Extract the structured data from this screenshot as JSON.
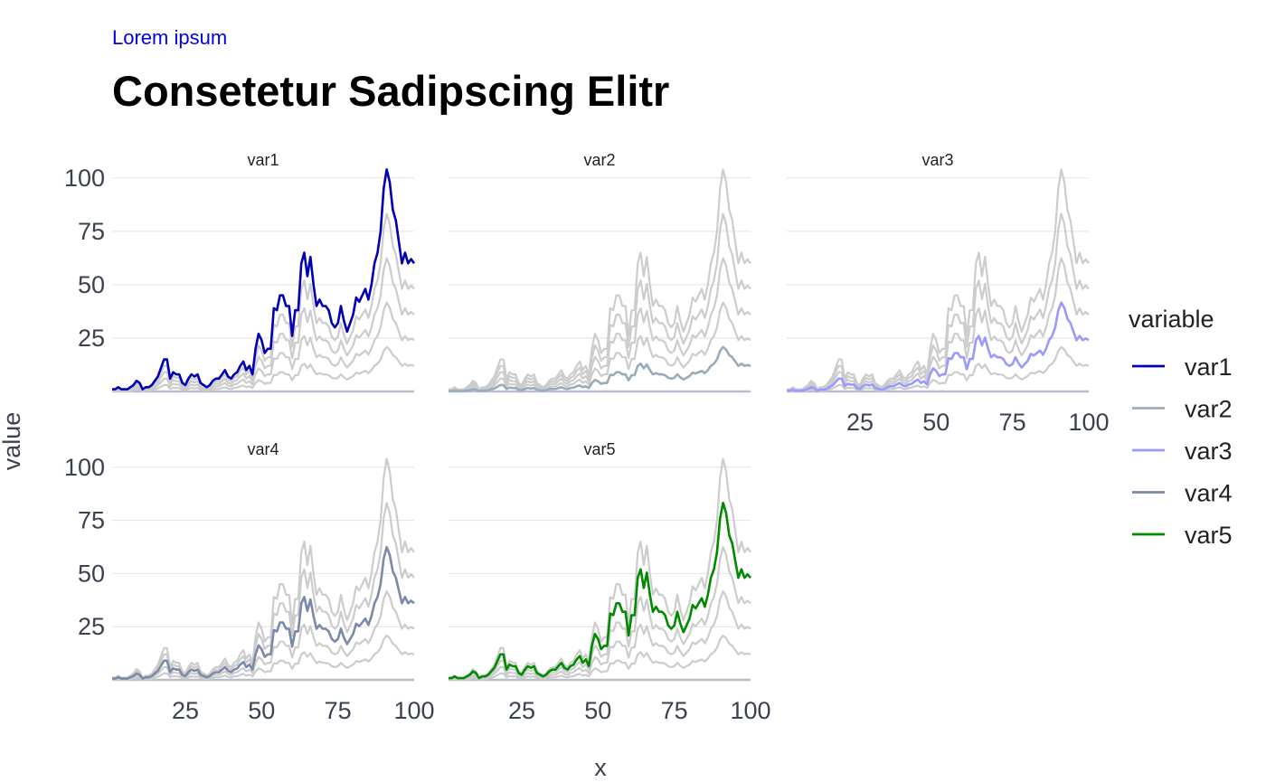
{
  "header": {
    "subtitle": "Lorem ipsum",
    "title": "Consetetur Sadipscing Elitr"
  },
  "colors": {
    "background_line": "#cccccc",
    "grid": "#e2e2e2",
    "axis": "#b8bfcc",
    "subtitle": "#0000ee"
  },
  "chart_data": {
    "type": "line",
    "layout": "faceted small multiples, 3 columns, other series in grey behind each panel",
    "xlabel": "x",
    "ylabel": "value",
    "xlim": [
      1,
      100
    ],
    "ylim": [
      0,
      105
    ],
    "x_ticks": [
      25,
      50,
      75,
      100
    ],
    "y_ticks": [
      25,
      50,
      75,
      100
    ],
    "grid": "horizontal major",
    "legend": {
      "title": "variable",
      "position": "right"
    },
    "facets": [
      "var1",
      "var2",
      "var3",
      "var4",
      "var5"
    ],
    "series": [
      {
        "name": "var1",
        "color": "#0000b3",
        "scale": 1.0
      },
      {
        "name": "var2",
        "color": "#9aabb9",
        "scale": 0.2
      },
      {
        "name": "var3",
        "color": "#9999ff",
        "scale": 0.4
      },
      {
        "name": "var4",
        "color": "#7a8aa8",
        "scale": 0.6
      },
      {
        "name": "var5",
        "color": "#008a00",
        "scale": 0.8
      }
    ],
    "x": [
      1,
      2,
      3,
      4,
      5,
      6,
      7,
      8,
      9,
      10,
      11,
      12,
      13,
      14,
      15,
      16,
      17,
      18,
      19,
      20,
      21,
      22,
      23,
      24,
      25,
      26,
      27,
      28,
      29,
      30,
      31,
      32,
      33,
      34,
      35,
      36,
      37,
      38,
      39,
      40,
      41,
      42,
      43,
      44,
      45,
      46,
      47,
      48,
      49,
      50,
      51,
      52,
      53,
      54,
      55,
      56,
      57,
      58,
      59,
      60,
      61,
      62,
      63,
      64,
      65,
      66,
      67,
      68,
      69,
      70,
      71,
      72,
      73,
      74,
      75,
      76,
      77,
      78,
      79,
      80,
      81,
      82,
      83,
      84,
      85,
      86,
      87,
      88,
      89,
      90,
      91,
      92,
      93,
      94,
      95,
      96,
      97,
      98,
      99,
      100
    ],
    "base_values": [
      1,
      1,
      2,
      1,
      1,
      1,
      2,
      3,
      5,
      4,
      1,
      2,
      2,
      3,
      5,
      7,
      11,
      15,
      15,
      6,
      9,
      8,
      8,
      4,
      3,
      6,
      8,
      7,
      8,
      4,
      3,
      2,
      3,
      5,
      6,
      6,
      8,
      10,
      7,
      6,
      8,
      9,
      12,
      14,
      10,
      12,
      8,
      20,
      27,
      24,
      18,
      20,
      20,
      39,
      38,
      45,
      45,
      40,
      40,
      26,
      38,
      38,
      60,
      65,
      54,
      63,
      50,
      40,
      43,
      40,
      40,
      38,
      32,
      30,
      32,
      40,
      33,
      28,
      32,
      36,
      44,
      42,
      45,
      48,
      43,
      50,
      60,
      65,
      75,
      95,
      104,
      98,
      85,
      80,
      70,
      60,
      65,
      60,
      62,
      60
    ]
  }
}
